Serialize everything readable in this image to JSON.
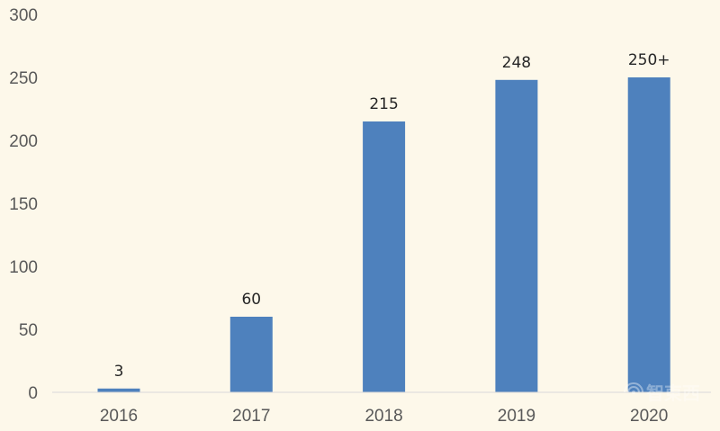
{
  "colors": {
    "background": "#fdf8ea",
    "bar": "#4e81bd",
    "axis_line": "#d9d9d9",
    "tick_text": "#595959",
    "label_text": "#262626"
  },
  "chart_data": {
    "type": "bar",
    "title": "",
    "xlabel": "",
    "ylabel": "",
    "categories": [
      "2016",
      "2017",
      "2018",
      "2019",
      "2020"
    ],
    "values": [
      3,
      60,
      215,
      248,
      250
    ],
    "data_labels": [
      "3",
      "60",
      "215",
      "248",
      "250+"
    ],
    "ylim": [
      0,
      300
    ],
    "yticks": [
      0,
      50,
      100,
      150,
      200,
      250,
      300
    ],
    "ytick_labels": [
      "0",
      "50",
      "100",
      "150",
      "200",
      "250",
      "300"
    ],
    "grid": false,
    "legend": "none"
  },
  "watermark": {
    "text": "智東西",
    "icon": "wifi-signal-icon"
  }
}
